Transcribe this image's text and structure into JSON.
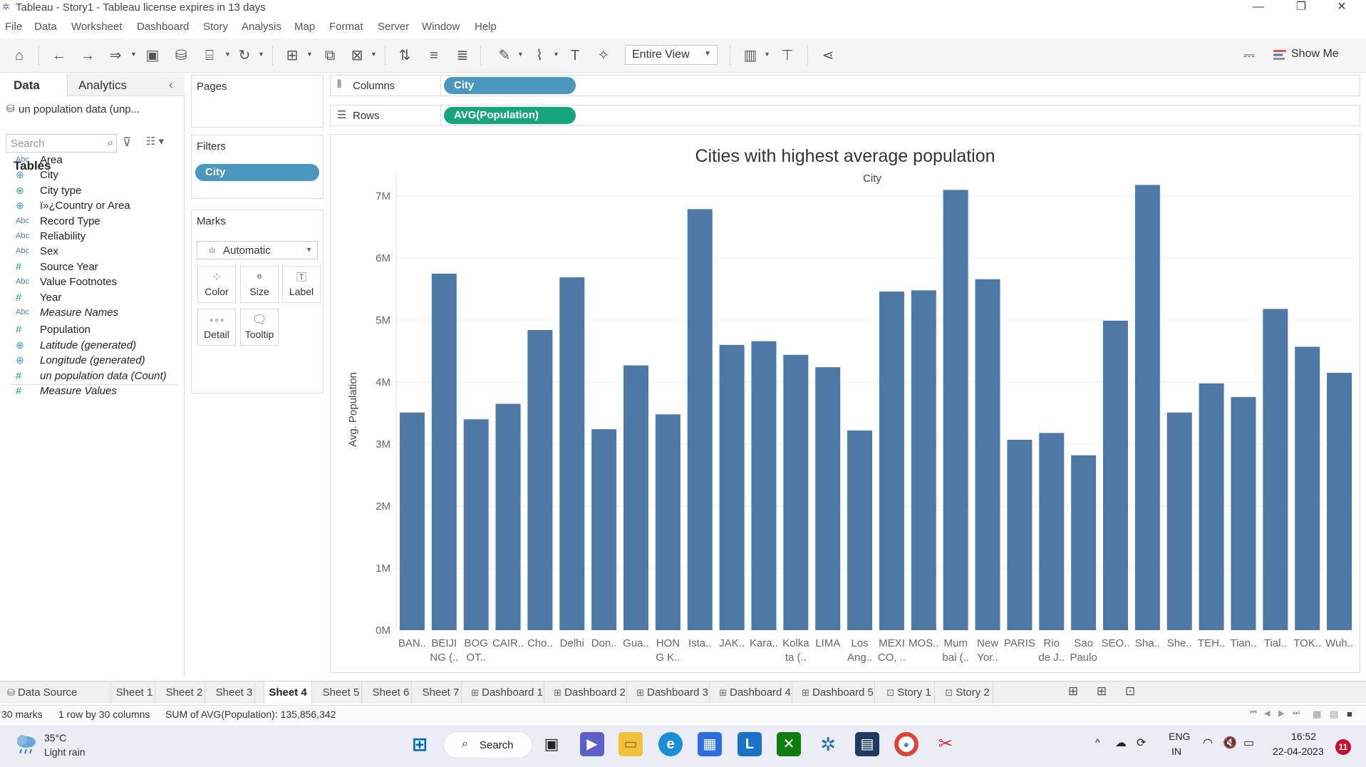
{
  "window": {
    "title": "Tableau - Story1 - Tableau license expires in 13 days",
    "minimize": "—",
    "restore": "❐",
    "close": "✕"
  },
  "menu": [
    "File",
    "Data",
    "Worksheet",
    "Dashboard",
    "Story",
    "Analysis",
    "Map",
    "Format",
    "Server",
    "Window",
    "Help"
  ],
  "toolbar": {
    "fit_value": "Entire View",
    "show_me_label": "Show Me"
  },
  "data_pane": {
    "tab_data": "Data",
    "tab_analytics": "Analytics",
    "datasource": "un population data (unp...",
    "search_placeholder": "Search",
    "tables_heading": "Tables",
    "fields": [
      {
        "type": "Abc",
        "name": "Area",
        "italic": false
      },
      {
        "type": "geo",
        "name": "City",
        "italic": false
      },
      {
        "type": "geo",
        "name": "City type",
        "italic": false
      },
      {
        "type": "geo",
        "name": "ï»¿Country or Area",
        "italic": false
      },
      {
        "type": "Abc",
        "name": "Record Type",
        "italic": false
      },
      {
        "type": "Abc",
        "name": "Reliability",
        "italic": false
      },
      {
        "type": "Abc",
        "name": "Sex",
        "italic": false
      },
      {
        "type": "#",
        "name": "Source Year",
        "italic": false
      },
      {
        "type": "Abc",
        "name": "Value Footnotes",
        "italic": false
      },
      {
        "type": "#",
        "name": "Year",
        "italic": false
      },
      {
        "type": "Abc",
        "name": "Measure Names",
        "italic": true
      },
      {
        "type": "#",
        "name": "Population",
        "italic": false
      },
      {
        "type": "geo",
        "name": "Latitude (generated)",
        "italic": true
      },
      {
        "type": "geo",
        "name": "Longitude (generated)",
        "italic": true
      },
      {
        "type": "#",
        "name": "un population data (Count)",
        "italic": true
      },
      {
        "type": "#",
        "name": "Measure Values",
        "italic": true
      }
    ]
  },
  "cards": {
    "pages_title": "Pages",
    "filters_title": "Filters",
    "filter_pill": "City",
    "marks_title": "Marks",
    "marks_type": "Automatic",
    "mark_buttons": [
      "Color",
      "Size",
      "Label",
      "Detail",
      "Tooltip"
    ]
  },
  "shelves": {
    "columns_label": "Columns",
    "columns_pill": "City",
    "rows_label": "Rows",
    "rows_pill": "AVG(Population)"
  },
  "chart_data": {
    "type": "bar",
    "title": "Cities with highest average population",
    "xlabel": "City",
    "ylabel": "Avg. Population",
    "ylim": [
      0,
      7300000
    ],
    "yticks": [
      "0M",
      "1M",
      "2M",
      "3M",
      "4M",
      "5M",
      "6M",
      "7M"
    ],
    "ytick_values": [
      0,
      1000000,
      2000000,
      3000000,
      4000000,
      5000000,
      6000000,
      7000000
    ],
    "bar_color": "#4e79a7",
    "categories": [
      [
        "BAN.."
      ],
      [
        "BEIJI",
        "NG (.."
      ],
      [
        "BOG",
        "OT.."
      ],
      [
        "CAIR.."
      ],
      [
        "Cho.."
      ],
      [
        "Delhi"
      ],
      [
        "Don.."
      ],
      [
        "Gua.."
      ],
      [
        "HON",
        "G K.."
      ],
      [
        "Ista.."
      ],
      [
        "JAK.."
      ],
      [
        "Kara.."
      ],
      [
        "Kolka",
        "ta (.."
      ],
      [
        "LIMA"
      ],
      [
        "Los",
        "Ang.."
      ],
      [
        "MEXI",
        "CO, .."
      ],
      [
        "MOS.."
      ],
      [
        "Mum",
        "bai (.."
      ],
      [
        "New",
        "Yor.."
      ],
      [
        "PARIS"
      ],
      [
        "Rio",
        "de J.."
      ],
      [
        "Sao",
        "Paulo"
      ],
      [
        "SEO.."
      ],
      [
        "Sha.."
      ],
      [
        "She.."
      ],
      [
        "TEH.."
      ],
      [
        "Tian.."
      ],
      [
        "Tial.."
      ],
      [
        "TOK.."
      ],
      [
        "Wuh.."
      ]
    ],
    "values": [
      3510000,
      5750000,
      3400000,
      3650000,
      4840000,
      5690000,
      3240000,
      4270000,
      3480000,
      6790000,
      4600000,
      4660000,
      4440000,
      4240000,
      3220000,
      5460000,
      5480000,
      7100000,
      5660000,
      3070000,
      3180000,
      2820000,
      4990000,
      7180000,
      3510000,
      3980000,
      3760000,
      5180000,
      4570000,
      4150000
    ],
    "grid": true
  },
  "tabs": {
    "data_source": "Data Source",
    "sheets": [
      {
        "label": "Sheet 1",
        "kind": "sheet",
        "active": false
      },
      {
        "label": "Sheet 2",
        "kind": "sheet",
        "active": false
      },
      {
        "label": "Sheet 3",
        "kind": "sheet",
        "active": false
      },
      {
        "label": "Sheet 4",
        "kind": "sheet",
        "active": true
      },
      {
        "label": "Sheet 5",
        "kind": "sheet",
        "active": false
      },
      {
        "label": "Sheet 6",
        "kind": "sheet",
        "active": false
      },
      {
        "label": "Sheet 7",
        "kind": "sheet",
        "active": false
      },
      {
        "label": "Dashboard 1",
        "kind": "dashboard",
        "active": false
      },
      {
        "label": "Dashboard 2",
        "kind": "dashboard",
        "active": false
      },
      {
        "label": "Dashboard 3",
        "kind": "dashboard",
        "active": false
      },
      {
        "label": "Dashboard 4",
        "kind": "dashboard",
        "active": false
      },
      {
        "label": "Dashboard 5",
        "kind": "dashboard",
        "active": false
      },
      {
        "label": "Story 1",
        "kind": "story",
        "active": false
      },
      {
        "label": "Story 2",
        "kind": "story",
        "active": false
      }
    ]
  },
  "status": {
    "marks": "30 marks",
    "dims": "1 row by 30 columns",
    "sum": "SUM of AVG(Population): 135,856,342"
  },
  "taskbar": {
    "temp": "35°C",
    "weather": "Light rain",
    "search": "Search",
    "lang1": "ENG",
    "lang2": "IN",
    "time": "16:52",
    "date": "22-04-2023",
    "notifications": "11"
  }
}
